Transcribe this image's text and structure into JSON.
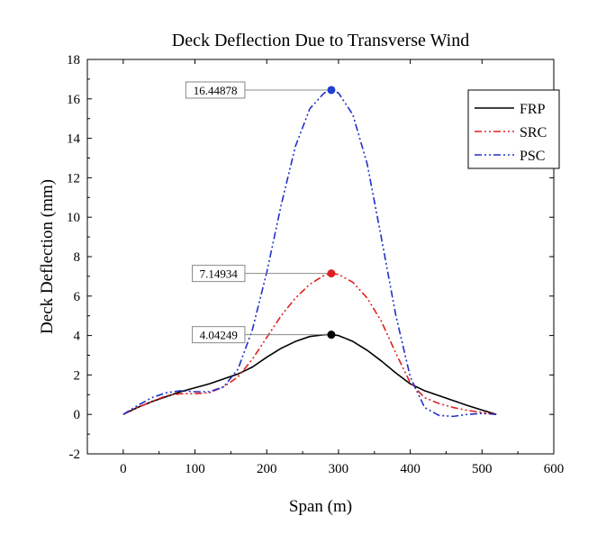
{
  "chart_data": {
    "type": "line",
    "title": "Deck Deflection Due to Transverse Wind",
    "xlabel": "Span (m)",
    "ylabel": "Deck Deflection (mm)",
    "xlim": [
      -50,
      600
    ],
    "ylim": [
      -2,
      18
    ],
    "xticks": [
      0,
      100,
      200,
      300,
      400,
      500,
      600
    ],
    "yticks": [
      -2,
      0,
      2,
      4,
      6,
      8,
      10,
      12,
      14,
      16,
      18
    ],
    "legend_position": "top-right",
    "series": [
      {
        "name": "FRP",
        "color": "#000000",
        "dash": "solid",
        "x": [
          0,
          20,
          40,
          60,
          80,
          100,
          120,
          140,
          160,
          180,
          200,
          220,
          240,
          260,
          280,
          290,
          300,
          320,
          340,
          360,
          380,
          400,
          420,
          440,
          460,
          480,
          500,
          520
        ],
        "y": [
          0,
          0.35,
          0.65,
          0.9,
          1.15,
          1.35,
          1.55,
          1.8,
          2.05,
          2.4,
          2.9,
          3.35,
          3.7,
          3.95,
          4.04,
          4.04249,
          4.0,
          3.7,
          3.25,
          2.7,
          2.1,
          1.55,
          1.2,
          0.95,
          0.7,
          0.45,
          0.22,
          0
        ]
      },
      {
        "name": "SRC",
        "color": "#e02020",
        "dash": "dash-dot-dot",
        "x": [
          0,
          20,
          40,
          60,
          80,
          100,
          120,
          140,
          160,
          180,
          200,
          220,
          240,
          260,
          280,
          290,
          300,
          320,
          340,
          360,
          380,
          400,
          420,
          440,
          460,
          480,
          500,
          520
        ],
        "y": [
          0,
          0.35,
          0.65,
          0.95,
          1.05,
          1.05,
          1.1,
          1.4,
          1.9,
          2.8,
          3.9,
          5.0,
          5.9,
          6.6,
          7.05,
          7.14934,
          7.1,
          6.7,
          5.9,
          4.7,
          3.1,
          1.6,
          0.85,
          0.55,
          0.35,
          0.2,
          0.1,
          0
        ]
      },
      {
        "name": "PSC",
        "color": "#2030c8",
        "dash": "dash-dot-dot",
        "x": [
          0,
          20,
          40,
          60,
          80,
          100,
          120,
          140,
          160,
          180,
          200,
          220,
          240,
          260,
          280,
          290,
          300,
          320,
          340,
          360,
          380,
          400,
          420,
          440,
          460,
          480,
          500,
          520
        ],
        "y": [
          0,
          0.45,
          0.85,
          1.1,
          1.2,
          1.15,
          1.15,
          1.4,
          2.3,
          4.3,
          7.2,
          10.6,
          13.6,
          15.5,
          16.3,
          16.44878,
          16.3,
          15.2,
          12.7,
          8.9,
          5.0,
          1.9,
          0.35,
          -0.05,
          -0.1,
          0.0,
          0.05,
          0
        ]
      }
    ],
    "annotations": [
      {
        "text": "16.44878",
        "x": 290,
        "y": 16.44878,
        "color": "#1f3fd0"
      },
      {
        "text": "7.14934",
        "x": 290,
        "y": 7.14934,
        "color": "#e02020"
      },
      {
        "text": "4.04249",
        "x": 290,
        "y": 4.04249,
        "color": "#000000"
      }
    ]
  }
}
